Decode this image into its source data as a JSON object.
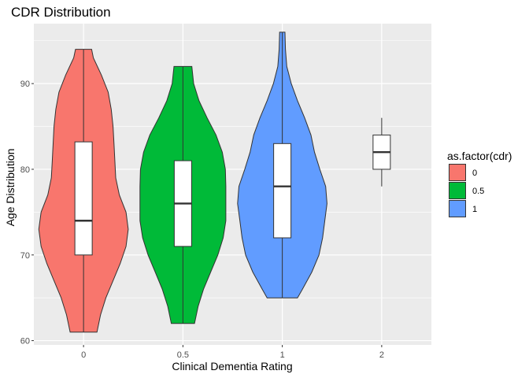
{
  "chart_data": {
    "type": "violin",
    "title": "CDR Distribution",
    "xlabel": "Clinical Dementia Rating",
    "ylabel": "Age Distribution",
    "categories": [
      "0",
      "0.5",
      "1",
      "2"
    ],
    "ylim": [
      59.5,
      97
    ],
    "yticks": [
      60,
      70,
      80,
      90
    ],
    "grid": true,
    "legend": {
      "title": "as.factor(cdr)",
      "position": "right",
      "items": [
        {
          "label": "0",
          "color": "#F8766D"
        },
        {
          "label": "0.5",
          "color": "#00BA38"
        },
        {
          "label": "1",
          "color": "#619CFF"
        }
      ]
    },
    "groups": [
      {
        "category": "0",
        "color": "#F8766D",
        "box": {
          "min": 61,
          "q1": 70,
          "median": 74,
          "q3": 83.2,
          "max": 94
        },
        "violin": {
          "min": 61,
          "max": 94,
          "profile": [
            [
              61,
              0.3
            ],
            [
              63,
              0.38
            ],
            [
              65,
              0.5
            ],
            [
              67,
              0.66
            ],
            [
              69,
              0.82
            ],
            [
              71,
              0.95
            ],
            [
              73,
              1.0
            ],
            [
              75,
              0.95
            ],
            [
              77,
              0.8
            ],
            [
              79,
              0.72
            ],
            [
              81,
              0.7
            ],
            [
              83,
              0.68
            ],
            [
              85,
              0.66
            ],
            [
              87,
              0.62
            ],
            [
              89,
              0.55
            ],
            [
              91,
              0.4
            ],
            [
              93,
              0.22
            ],
            [
              94,
              0.18
            ]
          ]
        }
      },
      {
        "category": "0.5",
        "color": "#00BA38",
        "box": {
          "min": 62,
          "q1": 71,
          "median": 76,
          "q3": 81,
          "max": 92
        },
        "violin": {
          "min": 62,
          "max": 92,
          "profile": [
            [
              62,
              0.26
            ],
            [
              64,
              0.34
            ],
            [
              66,
              0.46
            ],
            [
              68,
              0.62
            ],
            [
              70,
              0.78
            ],
            [
              72,
              0.9
            ],
            [
              74,
              0.96
            ],
            [
              76,
              0.96
            ],
            [
              78,
              0.96
            ],
            [
              80,
              0.95
            ],
            [
              82,
              0.88
            ],
            [
              84,
              0.74
            ],
            [
              86,
              0.54
            ],
            [
              88,
              0.36
            ],
            [
              90,
              0.24
            ],
            [
              92,
              0.2
            ]
          ]
        }
      },
      {
        "category": "1",
        "color": "#619CFF",
        "box": {
          "min": 65,
          "q1": 72,
          "median": 78,
          "q3": 83,
          "max": 96
        },
        "violin": {
          "min": 65,
          "max": 96,
          "profile": [
            [
              65,
              0.34
            ],
            [
              66,
              0.45
            ],
            [
              68,
              0.66
            ],
            [
              70,
              0.82
            ],
            [
              72,
              0.9
            ],
            [
              74,
              0.95
            ],
            [
              76,
              1.0
            ],
            [
              78,
              0.97
            ],
            [
              80,
              0.84
            ],
            [
              82,
              0.72
            ],
            [
              84,
              0.64
            ],
            [
              86,
              0.5
            ],
            [
              88,
              0.34
            ],
            [
              90,
              0.2
            ],
            [
              92,
              0.1
            ],
            [
              94,
              0.07
            ],
            [
              96,
              0.06
            ]
          ]
        }
      },
      {
        "category": "2",
        "color": null,
        "box": {
          "min": 78,
          "q1": 80,
          "median": 82,
          "q3": 84,
          "max": 86
        },
        "violin": null
      }
    ]
  }
}
